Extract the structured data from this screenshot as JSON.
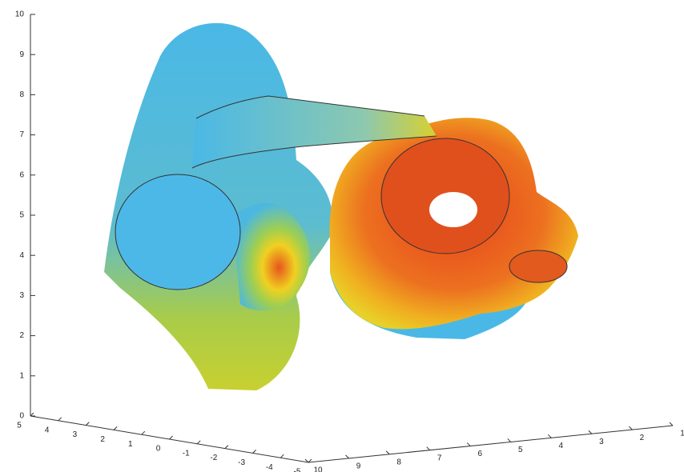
{
  "chart_data": {
    "type": "surface3d",
    "zlim": [
      0,
      10
    ],
    "zticks": [
      0,
      1,
      2,
      3,
      4,
      5,
      6,
      7,
      8,
      9,
      10
    ],
    "ylim": [
      5,
      -5
    ],
    "yticks": [
      5,
      4,
      3,
      2,
      1,
      0,
      -1,
      -2,
      -3,
      -4,
      -5
    ],
    "xlim": [
      10,
      1
    ],
    "xticks": [
      10,
      9,
      8,
      7,
      6,
      5,
      4,
      3,
      2,
      1
    ]
  }
}
